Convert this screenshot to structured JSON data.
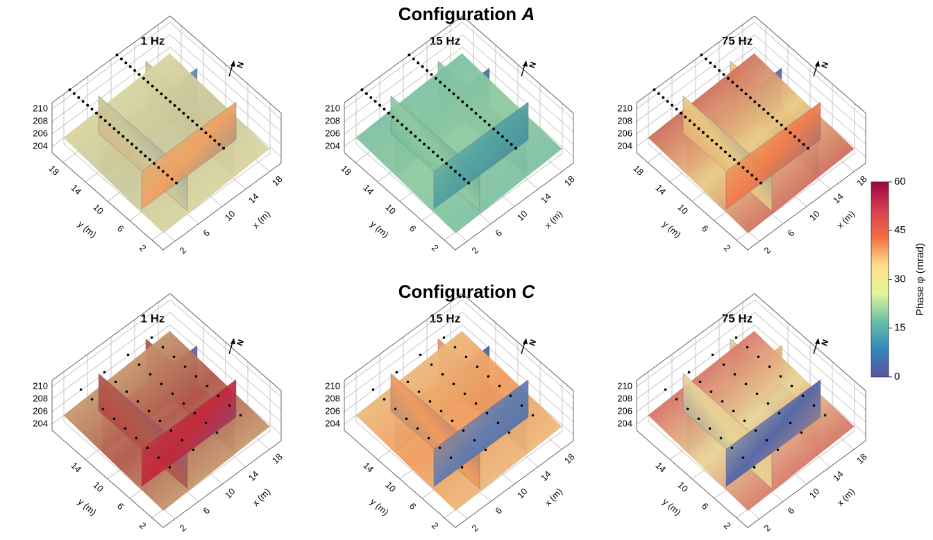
{
  "chart_data": {
    "type": "3d-sections",
    "colorbar": {
      "label": "Phase φ (mrad)",
      "lim": [
        0,
        60
      ],
      "ticks": [
        0,
        15,
        30,
        45,
        60
      ],
      "colors": [
        "#5e4fa2",
        "#3288bd",
        "#66c2a5",
        "#e6f598",
        "#fee08b",
        "#f46d43",
        "#d53e4f",
        "#9e0142"
      ]
    },
    "zticks": [
      204,
      206,
      208,
      210
    ],
    "xlabel": "x (m)",
    "ylabel": "y (m)",
    "north": "N",
    "rows": [
      {
        "title": "Configuration",
        "letter": "A",
        "xticks": [
          2,
          6,
          10,
          14,
          18
        ],
        "yticks": [
          2,
          6,
          10,
          14,
          18
        ],
        "panels": [
          {
            "title": "1 Hz",
            "colors": [
              "#e9e2a5",
              "#c9c69a",
              "#f0a060",
              "#5a7fb0"
            ]
          },
          {
            "title": "15 Hz",
            "colors": [
              "#6fb8a6",
              "#8fcaa0",
              "#4f9fa0",
              "#3a6f98"
            ]
          },
          {
            "title": "75 Hz",
            "colors": [
              "#b81c3c",
              "#e8c985",
              "#f07b4a",
              "#4a5fa8"
            ]
          }
        ]
      },
      {
        "title": "Configuration",
        "letter": "C",
        "xticks": [
          2,
          6,
          10,
          14,
          18
        ],
        "yticks": [
          2,
          6,
          10,
          14
        ],
        "panels": [
          {
            "title": "1 Hz",
            "colors": [
              "#d8d58f",
              "#b0574a",
              "#c2263a",
              "#5b5fa7"
            ]
          },
          {
            "title": "15 Hz",
            "colors": [
              "#e8d59a",
              "#f09a5c",
              "#5d7bb0",
              "#3f5aa0"
            ]
          },
          {
            "title": "75 Hz",
            "colors": [
              "#c8213e",
              "#e8d496",
              "#4d62a8",
              "#f3a86a"
            ]
          }
        ]
      }
    ]
  }
}
